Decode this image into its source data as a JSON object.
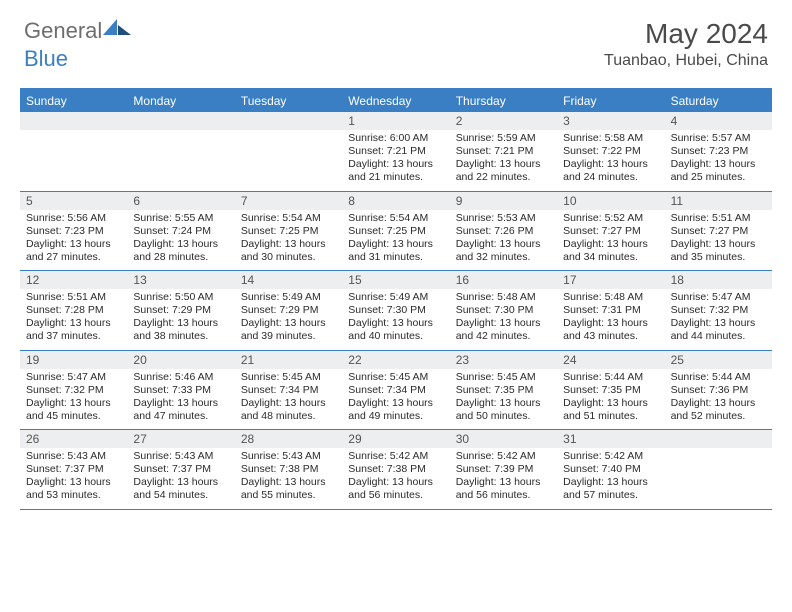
{
  "logo": {
    "text1": "General",
    "text2": "Blue"
  },
  "header": {
    "month": "May 2024",
    "location": "Tuanbao, Hubei, China"
  },
  "colors": {
    "brand": "#3a7fc4",
    "text": "#4a4a4a",
    "cellDateBg": "#eceeef",
    "background": "#ffffff"
  },
  "dayNames": [
    "Sunday",
    "Monday",
    "Tuesday",
    "Wednesday",
    "Thursday",
    "Friday",
    "Saturday"
  ],
  "weeks": [
    [
      null,
      null,
      null,
      {
        "n": "1",
        "sr": "6:00 AM",
        "ss": "7:21 PM",
        "dl": "13 hours and 21 minutes."
      },
      {
        "n": "2",
        "sr": "5:59 AM",
        "ss": "7:21 PM",
        "dl": "13 hours and 22 minutes."
      },
      {
        "n": "3",
        "sr": "5:58 AM",
        "ss": "7:22 PM",
        "dl": "13 hours and 24 minutes."
      },
      {
        "n": "4",
        "sr": "5:57 AM",
        "ss": "7:23 PM",
        "dl": "13 hours and 25 minutes."
      }
    ],
    [
      {
        "n": "5",
        "sr": "5:56 AM",
        "ss": "7:23 PM",
        "dl": "13 hours and 27 minutes."
      },
      {
        "n": "6",
        "sr": "5:55 AM",
        "ss": "7:24 PM",
        "dl": "13 hours and 28 minutes."
      },
      {
        "n": "7",
        "sr": "5:54 AM",
        "ss": "7:25 PM",
        "dl": "13 hours and 30 minutes."
      },
      {
        "n": "8",
        "sr": "5:54 AM",
        "ss": "7:25 PM",
        "dl": "13 hours and 31 minutes."
      },
      {
        "n": "9",
        "sr": "5:53 AM",
        "ss": "7:26 PM",
        "dl": "13 hours and 32 minutes."
      },
      {
        "n": "10",
        "sr": "5:52 AM",
        "ss": "7:27 PM",
        "dl": "13 hours and 34 minutes."
      },
      {
        "n": "11",
        "sr": "5:51 AM",
        "ss": "7:27 PM",
        "dl": "13 hours and 35 minutes."
      }
    ],
    [
      {
        "n": "12",
        "sr": "5:51 AM",
        "ss": "7:28 PM",
        "dl": "13 hours and 37 minutes."
      },
      {
        "n": "13",
        "sr": "5:50 AM",
        "ss": "7:29 PM",
        "dl": "13 hours and 38 minutes."
      },
      {
        "n": "14",
        "sr": "5:49 AM",
        "ss": "7:29 PM",
        "dl": "13 hours and 39 minutes."
      },
      {
        "n": "15",
        "sr": "5:49 AM",
        "ss": "7:30 PM",
        "dl": "13 hours and 40 minutes."
      },
      {
        "n": "16",
        "sr": "5:48 AM",
        "ss": "7:30 PM",
        "dl": "13 hours and 42 minutes."
      },
      {
        "n": "17",
        "sr": "5:48 AM",
        "ss": "7:31 PM",
        "dl": "13 hours and 43 minutes."
      },
      {
        "n": "18",
        "sr": "5:47 AM",
        "ss": "7:32 PM",
        "dl": "13 hours and 44 minutes."
      }
    ],
    [
      {
        "n": "19",
        "sr": "5:47 AM",
        "ss": "7:32 PM",
        "dl": "13 hours and 45 minutes."
      },
      {
        "n": "20",
        "sr": "5:46 AM",
        "ss": "7:33 PM",
        "dl": "13 hours and 47 minutes."
      },
      {
        "n": "21",
        "sr": "5:45 AM",
        "ss": "7:34 PM",
        "dl": "13 hours and 48 minutes."
      },
      {
        "n": "22",
        "sr": "5:45 AM",
        "ss": "7:34 PM",
        "dl": "13 hours and 49 minutes."
      },
      {
        "n": "23",
        "sr": "5:45 AM",
        "ss": "7:35 PM",
        "dl": "13 hours and 50 minutes."
      },
      {
        "n": "24",
        "sr": "5:44 AM",
        "ss": "7:35 PM",
        "dl": "13 hours and 51 minutes."
      },
      {
        "n": "25",
        "sr": "5:44 AM",
        "ss": "7:36 PM",
        "dl": "13 hours and 52 minutes."
      }
    ],
    [
      {
        "n": "26",
        "sr": "5:43 AM",
        "ss": "7:37 PM",
        "dl": "13 hours and 53 minutes."
      },
      {
        "n": "27",
        "sr": "5:43 AM",
        "ss": "7:37 PM",
        "dl": "13 hours and 54 minutes."
      },
      {
        "n": "28",
        "sr": "5:43 AM",
        "ss": "7:38 PM",
        "dl": "13 hours and 55 minutes."
      },
      {
        "n": "29",
        "sr": "5:42 AM",
        "ss": "7:38 PM",
        "dl": "13 hours and 56 minutes."
      },
      {
        "n": "30",
        "sr": "5:42 AM",
        "ss": "7:39 PM",
        "dl": "13 hours and 56 minutes."
      },
      {
        "n": "31",
        "sr": "5:42 AM",
        "ss": "7:40 PM",
        "dl": "13 hours and 57 minutes."
      },
      null
    ]
  ],
  "labels": {
    "sunrise": "Sunrise:",
    "sunset": "Sunset:",
    "daylight": "Daylight:"
  }
}
